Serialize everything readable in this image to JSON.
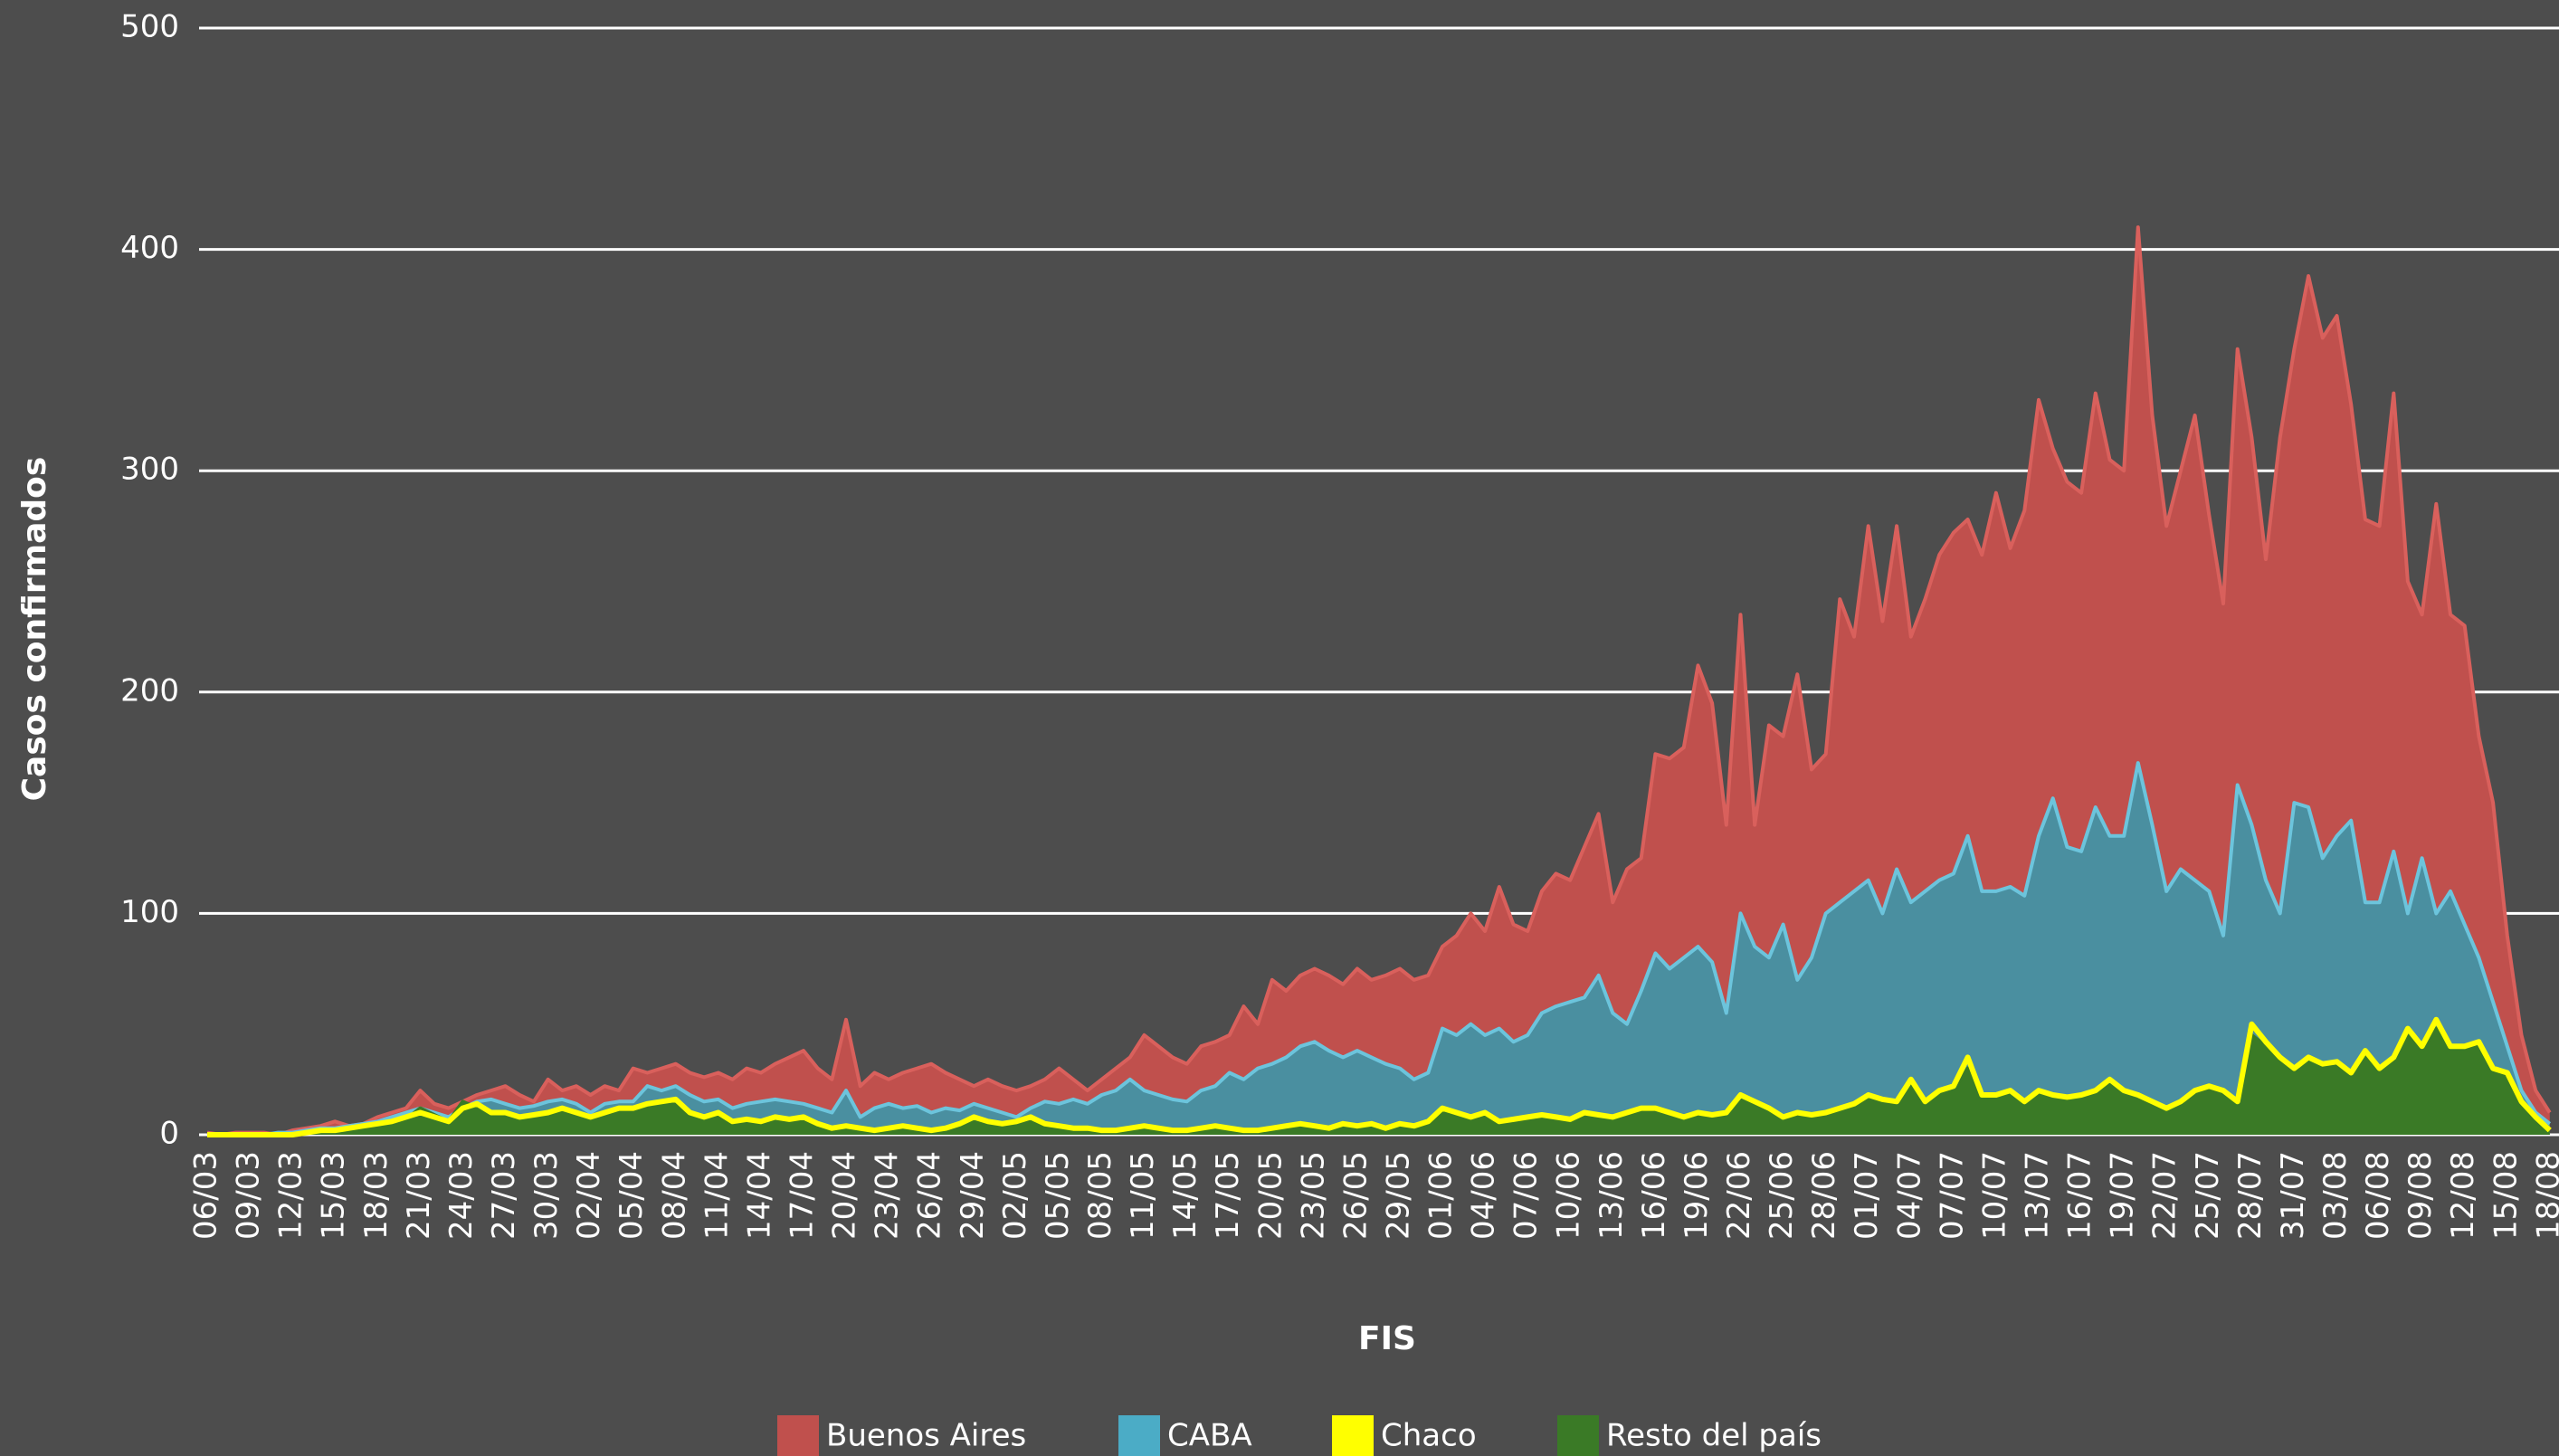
{
  "chart_data": {
    "type": "area",
    "xlabel": "FIS",
    "ylabel": "Casos confirmados",
    "ylim": [
      0,
      500
    ],
    "yticks": [
      0,
      100,
      200,
      300,
      400,
      500
    ],
    "grid": true,
    "legend": "bottom",
    "categories": [
      "06/03",
      null,
      null,
      "09/03",
      null,
      null,
      "12/03",
      null,
      null,
      "15/03",
      null,
      null,
      "18/03",
      null,
      null,
      "21/03",
      null,
      null,
      "24/03",
      null,
      null,
      "27/03",
      null,
      null,
      "30/03",
      null,
      null,
      "02/04",
      null,
      null,
      "05/04",
      null,
      null,
      "08/04",
      null,
      null,
      "11/04",
      null,
      null,
      "14/04",
      null,
      null,
      "17/04",
      null,
      null,
      "20/04",
      null,
      null,
      "23/04",
      null,
      null,
      "26/04",
      null,
      null,
      "29/04",
      null,
      null,
      "02/05",
      null,
      null,
      "05/05",
      null,
      null,
      "08/05",
      null,
      null,
      "11/05",
      null,
      null,
      "14/05",
      null,
      null,
      "17/05",
      null,
      null,
      "20/05",
      null,
      null,
      "23/05",
      null,
      null,
      "26/05",
      null,
      null,
      "29/05",
      null,
      null,
      "01/06",
      null,
      null,
      "04/06",
      null,
      null,
      "07/06",
      null,
      null,
      "10/06",
      null,
      null,
      "13/06",
      null,
      null,
      "16/06",
      null,
      null,
      "19/06",
      null,
      null,
      "22/06",
      null,
      null,
      "25/06",
      null,
      null,
      "28/06",
      null,
      null,
      "01/07",
      null,
      null,
      "04/07",
      null,
      null,
      "07/07",
      null,
      null,
      "10/07",
      null,
      null,
      "13/07",
      null,
      null,
      "16/07",
      null,
      null,
      "19/07",
      null,
      null,
      "22/07",
      null,
      null,
      "25/07",
      null,
      null,
      "28/07",
      null,
      null,
      "31/07",
      null,
      null,
      "03/08",
      null,
      null,
      "06/08",
      null,
      null,
      "09/08",
      null,
      null,
      "12/08",
      null,
      null,
      "15/08",
      null,
      null,
      "18/08"
    ],
    "series": [
      {
        "name": "Buenos Aires",
        "color": "#c0504d",
        "values": [
          1,
          0,
          1,
          1,
          1,
          0,
          2,
          3,
          4,
          6,
          4,
          5,
          8,
          10,
          12,
          20,
          14,
          12,
          15,
          18,
          20,
          22,
          18,
          15,
          25,
          20,
          22,
          18,
          22,
          20,
          30,
          28,
          30,
          32,
          28,
          26,
          28,
          25,
          30,
          28,
          32,
          35,
          38,
          30,
          25,
          52,
          22,
          28,
          25,
          28,
          30,
          32,
          28,
          25,
          22,
          25,
          22,
          20,
          22,
          25,
          30,
          25,
          20,
          25,
          30,
          35,
          45,
          40,
          35,
          32,
          40,
          42,
          45,
          58,
          50,
          70,
          65,
          72,
          75,
          72,
          68,
          75,
          70,
          72,
          75,
          70,
          72,
          85,
          90,
          100,
          92,
          112,
          95,
          92,
          110,
          118,
          115,
          130,
          145,
          105,
          120,
          125,
          172,
          170,
          175,
          212,
          195,
          140,
          235,
          140,
          185,
          180,
          208,
          165,
          172,
          242,
          225,
          275,
          232,
          275,
          225,
          242,
          262,
          272,
          278,
          262,
          290,
          265,
          282,
          332,
          310,
          295,
          290,
          335,
          305,
          300,
          410,
          325,
          275,
          300,
          325,
          280,
          240,
          355,
          315,
          260,
          315,
          355,
          388,
          360,
          370,
          330,
          278,
          275,
          335,
          250,
          235,
          285,
          235,
          230,
          180,
          150,
          90,
          45,
          20,
          10
        ]
      },
      {
        "name": "CABA",
        "color": "#4bacc6",
        "values": [
          0,
          0,
          0,
          0,
          0,
          1,
          1,
          2,
          3,
          3,
          4,
          5,
          6,
          8,
          10,
          12,
          10,
          8,
          12,
          15,
          16,
          14,
          12,
          13,
          15,
          16,
          14,
          10,
          14,
          15,
          15,
          22,
          20,
          22,
          18,
          15,
          16,
          12,
          14,
          15,
          16,
          15,
          14,
          12,
          10,
          20,
          8,
          12,
          14,
          12,
          13,
          10,
          12,
          11,
          14,
          12,
          10,
          8,
          12,
          15,
          14,
          16,
          14,
          18,
          20,
          25,
          20,
          18,
          16,
          15,
          20,
          22,
          28,
          25,
          30,
          32,
          35,
          40,
          42,
          38,
          35,
          38,
          35,
          32,
          30,
          25,
          28,
          48,
          45,
          50,
          45,
          48,
          42,
          45,
          55,
          58,
          60,
          62,
          72,
          55,
          50,
          65,
          82,
          75,
          80,
          85,
          78,
          55,
          100,
          85,
          80,
          95,
          70,
          80,
          100,
          105,
          110,
          115,
          100,
          120,
          105,
          110,
          115,
          118,
          135,
          110,
          110,
          112,
          108,
          135,
          152,
          130,
          128,
          148,
          135,
          135,
          168,
          140,
          110,
          120,
          115,
          110,
          90,
          158,
          140,
          115,
          100,
          150,
          148,
          125,
          135,
          142,
          105,
          105,
          128,
          100,
          125,
          100,
          110,
          95,
          80,
          60,
          40,
          20,
          10,
          5
        ]
      },
      {
        "name": "Chaco",
        "color": "#ffff00",
        "values": [
          0,
          0,
          0,
          0,
          0,
          0,
          0,
          1,
          2,
          2,
          3,
          4,
          5,
          6,
          8,
          10,
          8,
          6,
          12,
          14,
          10,
          10,
          8,
          9,
          10,
          12,
          10,
          8,
          10,
          12,
          12,
          14,
          15,
          16,
          10,
          8,
          10,
          6,
          7,
          6,
          8,
          7,
          8,
          5,
          3,
          4,
          3,
          2,
          3,
          4,
          3,
          2,
          3,
          5,
          8,
          6,
          5,
          6,
          8,
          5,
          4,
          3,
          3,
          2,
          2,
          3,
          4,
          3,
          2,
          2,
          3,
          4,
          3,
          2,
          2,
          3,
          4,
          5,
          4,
          3,
          5,
          4,
          5,
          3,
          5,
          4,
          6,
          12,
          10,
          8,
          10,
          6,
          7,
          8,
          9,
          8,
          7,
          10,
          9,
          8,
          10,
          12,
          12,
          10,
          8,
          10,
          9,
          10,
          18,
          15,
          12,
          8,
          10,
          9,
          10,
          12,
          14,
          18,
          16,
          15,
          25,
          15,
          20,
          22,
          35,
          18,
          18,
          20,
          15,
          20,
          18,
          17,
          18,
          20,
          25,
          20,
          18,
          15,
          12,
          15,
          20,
          22,
          20,
          15,
          50,
          42,
          35,
          30,
          35,
          32,
          33,
          28,
          38,
          30,
          35,
          48,
          40,
          52,
          40,
          40,
          42,
          30,
          28,
          15,
          8,
          2
        ]
      },
      {
        "name": "Resto del país",
        "color": "#3a7a26",
        "values": [
          0,
          0,
          0,
          0,
          0,
          0,
          0,
          1,
          1,
          2,
          3,
          3,
          4,
          6,
          7,
          12,
          9,
          6,
          15,
          12,
          9,
          9,
          8,
          8,
          10,
          11,
          9,
          8,
          10,
          11,
          11,
          13,
          14,
          15,
          10,
          8,
          9,
          6,
          6,
          6,
          7,
          7,
          7,
          5,
          3,
          4,
          3,
          2,
          3,
          3,
          3,
          2,
          3,
          4,
          7,
          6,
          5,
          6,
          7,
          5,
          4,
          3,
          3,
          2,
          2,
          3,
          3,
          3,
          2,
          2,
          3,
          3,
          3,
          2,
          2,
          3,
          3,
          4,
          4,
          3,
          4,
          4,
          4,
          3,
          4,
          4,
          5,
          10,
          9,
          8,
          9,
          6,
          7,
          8,
          8,
          8,
          7,
          9,
          9,
          8,
          9,
          11,
          11,
          10,
          8,
          9,
          9,
          10,
          16,
          14,
          12,
          8,
          9,
          9,
          10,
          11,
          13,
          17,
          15,
          15,
          22,
          15,
          18,
          20,
          30,
          18,
          18,
          19,
          15,
          19,
          18,
          17,
          18,
          19,
          23,
          19,
          17,
          15,
          12,
          14,
          19,
          21,
          19,
          15,
          45,
          40,
          34,
          30,
          33,
          31,
          32,
          28,
          36,
          30,
          33,
          45,
          38,
          48,
          39,
          39,
          40,
          30,
          27,
          14,
          8,
          2
        ]
      }
    ]
  }
}
